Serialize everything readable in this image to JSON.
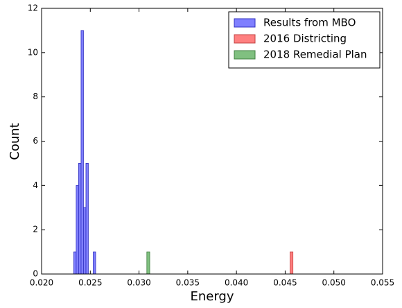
{
  "chart_data": {
    "type": "histogram",
    "x_label": "Energy",
    "y_label": "Count",
    "xlim": [
      0.02,
      0.055
    ],
    "xticks": [
      {
        "value": 0.02,
        "label": "0.020"
      },
      {
        "value": 0.025,
        "label": "0.025"
      },
      {
        "value": 0.03,
        "label": "0.030"
      },
      {
        "value": 0.035,
        "label": "0.035"
      },
      {
        "value": 0.04,
        "label": "0.040"
      },
      {
        "value": 0.045,
        "label": "0.045"
      },
      {
        "value": 0.05,
        "label": "0.050"
      },
      {
        "value": 0.055,
        "label": "0.055"
      }
    ],
    "ylim": [
      0,
      12
    ],
    "yticks": [
      0,
      2,
      4,
      6,
      8,
      10,
      12
    ],
    "legend": "upper right",
    "series": [
      {
        "name": "Results from MBO",
        "color": "#7f7fff",
        "edge": "#3030c0",
        "bins": [
          0.0233,
          0.02355,
          0.0238,
          0.02405,
          0.0243,
          0.02455,
          0.0248,
          0.02505,
          0.0253,
          0.02555
        ],
        "values": [
          1,
          4,
          5,
          11,
          3,
          5,
          0,
          0,
          1
        ]
      },
      {
        "name": "2016 Districting",
        "color": "#ff8080",
        "edge": "#c04040",
        "bins": [
          0.0455,
          0.0458
        ],
        "values": [
          1
        ]
      },
      {
        "name": "2018 Remedial Plan",
        "color": "#80c080",
        "edge": "#408040",
        "bins": [
          0.0308,
          0.0311
        ],
        "values": [
          1
        ]
      }
    ]
  }
}
